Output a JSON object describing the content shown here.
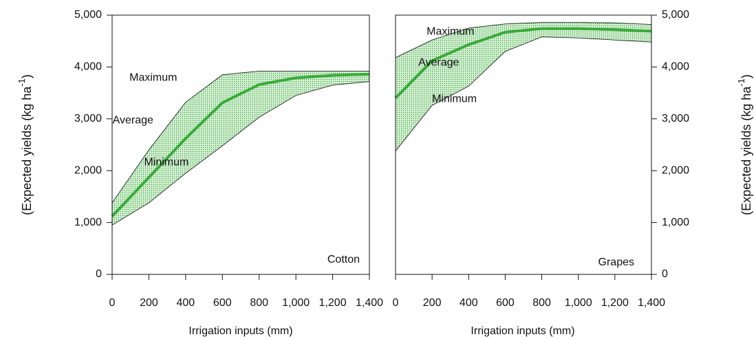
{
  "chart_data": [
    {
      "type": "band-line",
      "annotation": "Cotton",
      "xlabel": "Irrigation inputs (mm)",
      "ylabel": {
        "text": "(Expected yields (kg ha",
        "superscript": "-1",
        "end": ")"
      },
      "yaxis_side": "left",
      "x": [
        0,
        200,
        400,
        600,
        800,
        1000,
        1200,
        1400
      ],
      "series": [
        {
          "name": "Maximum",
          "color": "#222222",
          "values": [
            1380,
            2400,
            3320,
            3850,
            3920,
            3920,
            3920,
            3920
          ]
        },
        {
          "name": "Average",
          "color": "#3aaa3a",
          "values": [
            1120,
            1870,
            2620,
            3310,
            3660,
            3790,
            3840,
            3860
          ]
        },
        {
          "name": "Minimum",
          "color": "#222222",
          "values": [
            950,
            1380,
            1950,
            2480,
            3030,
            3450,
            3650,
            3720
          ]
        }
      ],
      "band_color": "#4cbf4c",
      "xlim": [
        0,
        1400
      ],
      "xticks": [
        0,
        200,
        400,
        600,
        800,
        {
          "value": 1000,
          "label": "1,000"
        },
        {
          "value": 1200,
          "label": "1,200"
        },
        {
          "value": 1400,
          "label": "1,400"
        }
      ],
      "ylim": [
        0,
        5000
      ],
      "yticks": [
        0,
        {
          "value": 1000,
          "label": "1,000"
        },
        {
          "value": 2000,
          "label": "2,000"
        },
        {
          "value": 3000,
          "label": "3,000"
        },
        {
          "value": 4000,
          "label": "4,000"
        },
        {
          "value": 5000,
          "label": "5,000"
        }
      ]
    },
    {
      "type": "band-line",
      "annotation": "Grapes",
      "xlabel": "Irrigation inputs (mm)",
      "ylabel": {
        "text": "(Expected yields (kg ha",
        "superscript": "-1",
        "end": ")"
      },
      "yaxis_side": "right",
      "x": [
        0,
        200,
        400,
        600,
        800,
        1000,
        1200,
        1400
      ],
      "series": [
        {
          "name": "Maximum",
          "color": "#222222",
          "values": [
            4180,
            4520,
            4750,
            4830,
            4860,
            4860,
            4850,
            4820
          ]
        },
        {
          "name": "Average",
          "color": "#3aaa3a",
          "values": [
            3400,
            4120,
            4430,
            4670,
            4740,
            4740,
            4720,
            4690
          ]
        },
        {
          "name": "Minimum",
          "color": "#222222",
          "values": [
            2380,
            3260,
            3630,
            4300,
            4580,
            4560,
            4520,
            4480
          ]
        }
      ],
      "band_color": "#4cbf4c",
      "xlim": [
        0,
        1400
      ],
      "xticks": [
        0,
        200,
        400,
        600,
        800,
        {
          "value": 1000,
          "label": "1,000"
        },
        {
          "value": 1200,
          "label": "1,200"
        },
        {
          "value": 1400,
          "label": "1,400"
        }
      ],
      "ylim": [
        0,
        5000
      ],
      "yticks": [
        0,
        {
          "value": 1000,
          "label": "1,000"
        },
        {
          "value": 2000,
          "label": "2,000"
        },
        {
          "value": 3000,
          "label": "3,000"
        },
        {
          "value": 4000,
          "label": "4,000"
        },
        {
          "value": 5000,
          "label": "5,000"
        }
      ]
    }
  ]
}
